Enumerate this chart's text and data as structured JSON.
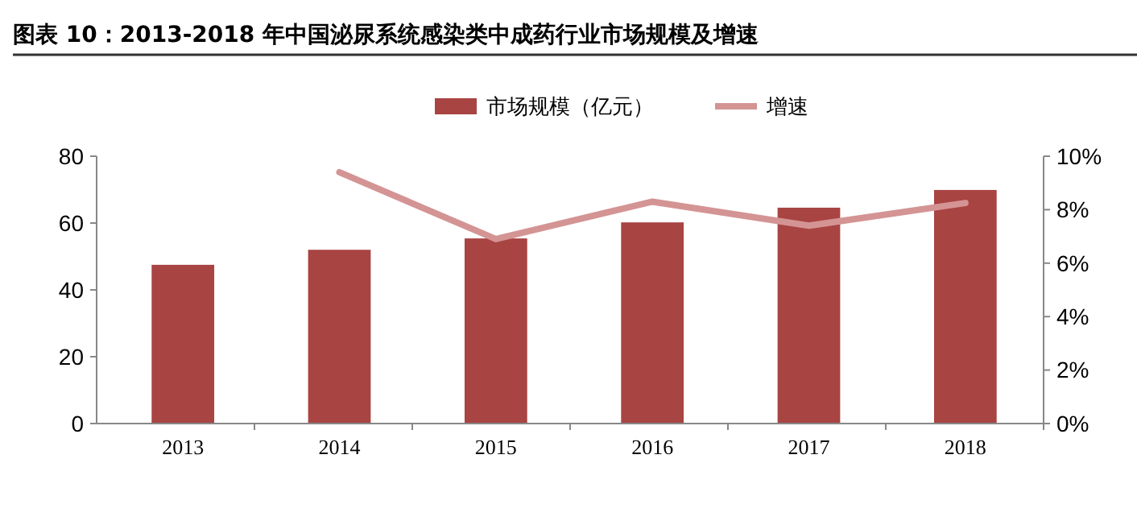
{
  "chart_data": {
    "type": "bar",
    "title": "图表 10：2013-2018 年中国泌尿系统感染类中成药行业市场规模及增速",
    "categories": [
      "2013",
      "2014",
      "2015",
      "2016",
      "2017",
      "2018"
    ],
    "series": [
      {
        "name": "市场规模（亿元）",
        "color": "#a84442",
        "values": [
          47.5,
          52,
          55.4,
          60.2,
          64.6,
          69.9
        ]
      },
      {
        "name": "增速",
        "type": "line",
        "axis": "y2",
        "color": "#d49494",
        "values": [
          null,
          9.4,
          6.9,
          8.3,
          7.4,
          8.25
        ]
      }
    ],
    "ylim": [
      0,
      80
    ],
    "yticks": [
      0,
      20,
      40,
      60,
      80
    ],
    "y2lim": [
      0,
      10
    ],
    "y2ticks": [
      {
        "value": 0,
        "label": "0%"
      },
      {
        "value": 2,
        "label": "2%"
      },
      {
        "value": 4,
        "label": "4%"
      },
      {
        "value": 6,
        "label": "6%"
      },
      {
        "value": 8,
        "label": "8%"
      },
      {
        "value": 10,
        "label": "10%"
      }
    ],
    "legend": "top",
    "grid": false
  }
}
